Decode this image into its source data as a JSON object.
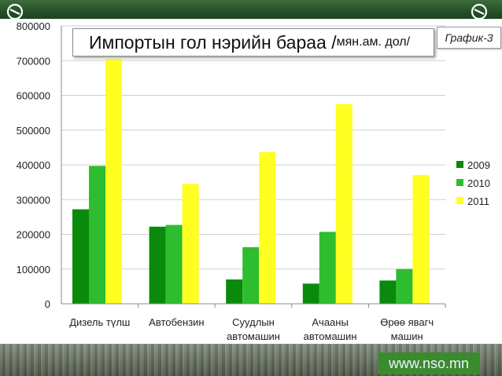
{
  "tag": "График-3",
  "title": {
    "main": "Импортын гол нэрийн бараа /",
    "sub": "мян.ам. дол/"
  },
  "url": "www.nso.mn",
  "colors": {
    "2009": "#0a8a0a",
    "2010": "#2ebd2e",
    "2011": "#ffff22",
    "grid": "#d0d0d0"
  },
  "chart_data": {
    "type": "bar",
    "title": "Импортын гол нэрийн бараа /мян.ам. дол/",
    "categories": [
      [
        "Дизель түлш"
      ],
      [
        "Автобензин"
      ],
      [
        "Суудлын",
        "автомашин"
      ],
      [
        "Ачааны",
        "автомашин"
      ],
      [
        "Өрөө явагч",
        "машин"
      ]
    ],
    "series": [
      {
        "name": "2009",
        "values": [
          272000,
          222000,
          70000,
          58000,
          67000
        ]
      },
      {
        "name": "2010",
        "values": [
          397000,
          227000,
          163000,
          207000,
          100000
        ]
      },
      {
        "name": "2011",
        "values": [
          705000,
          345000,
          437000,
          575000,
          371000
        ]
      }
    ],
    "ylim": [
      0,
      800000
    ],
    "yticks": [
      0,
      100000,
      200000,
      300000,
      400000,
      500000,
      600000,
      700000,
      800000
    ],
    "xlabel": "",
    "ylabel": "",
    "grid": true,
    "legend": "right"
  }
}
